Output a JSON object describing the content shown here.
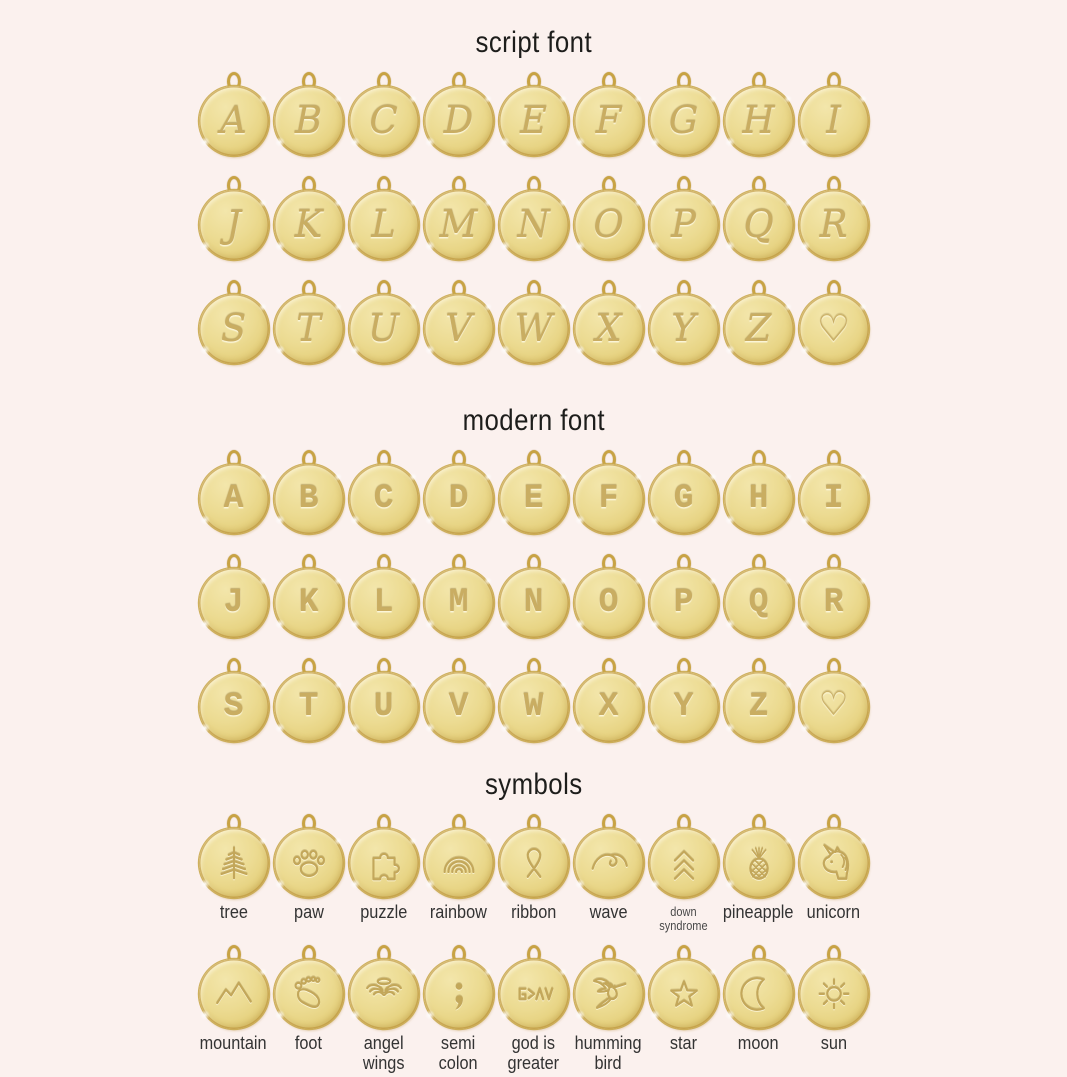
{
  "page": {
    "background": "#fbf1ee"
  },
  "colors": {
    "disc_gold_light": "#f3e6ab",
    "disc_gold": "#ecdb92",
    "disc_gold_dark": "#e5d07c",
    "rim_gold": "#c8a344",
    "engrave": "#c3a75a",
    "heading_text": "#1d1d1b",
    "label_text": "#333333"
  },
  "sections": {
    "script": {
      "title": "script font",
      "rows": [
        [
          "A",
          "B",
          "C",
          "D",
          "E",
          "F",
          "G",
          "H",
          "I"
        ],
        [
          "J",
          "K",
          "L",
          "M",
          "N",
          "O",
          "P",
          "Q",
          "R"
        ],
        [
          "S",
          "T",
          "U",
          "V",
          "W",
          "X",
          "Y",
          "Z",
          "♡"
        ]
      ]
    },
    "modern": {
      "title": "modern font",
      "rows": [
        [
          "A",
          "B",
          "C",
          "D",
          "E",
          "F",
          "G",
          "H",
          "I"
        ],
        [
          "J",
          "K",
          "L",
          "M",
          "N",
          "O",
          "P",
          "Q",
          "R"
        ],
        [
          "S",
          "T",
          "U",
          "V",
          "W",
          "X",
          "Y",
          "Z",
          "♡"
        ]
      ]
    },
    "symbols": {
      "title": "symbols",
      "rows": [
        [
          {
            "icon": "tree-icon",
            "label": "tree"
          },
          {
            "icon": "paw-icon",
            "label": "paw"
          },
          {
            "icon": "puzzle-icon",
            "label": "puzzle"
          },
          {
            "icon": "rainbow-icon",
            "label": "rainbow"
          },
          {
            "icon": "ribbon-icon",
            "label": "ribbon"
          },
          {
            "icon": "wave-icon",
            "label": "wave"
          },
          {
            "icon": "down-syndrome-icon",
            "label": "down\nsyndrome",
            "small_label": true
          },
          {
            "icon": "pineapple-icon",
            "label": "pineapple"
          },
          {
            "icon": "unicorn-icon",
            "label": "unicorn"
          }
        ],
        [
          {
            "icon": "mountain-icon",
            "label": "mountain"
          },
          {
            "icon": "foot-icon",
            "label": "foot"
          },
          {
            "icon": "angel-wings-icon",
            "label": "angel\nwings"
          },
          {
            "icon": "semicolon-icon",
            "label": "semi\ncolon"
          },
          {
            "icon": "god-is-greater-icon",
            "label": "god is\ngreater"
          },
          {
            "icon": "hummingbird-icon",
            "label": "humming\nbird"
          },
          {
            "icon": "star-icon",
            "label": "star"
          },
          {
            "icon": "moon-icon",
            "label": "moon"
          },
          {
            "icon": "sun-icon",
            "label": "sun"
          }
        ]
      ]
    }
  }
}
